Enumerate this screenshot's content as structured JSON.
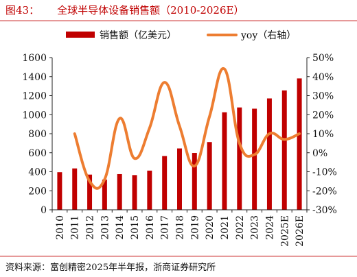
{
  "header": {
    "figure_label": "图43：",
    "title": "全球半导体设备销售额（2010-2026E）"
  },
  "footer": {
    "source": "资料来源：富创精密2025年半年报，浙商证券研究所"
  },
  "chart_data": {
    "type": "bar",
    "categories": [
      "2010",
      "2011",
      "2012",
      "2013",
      "2014",
      "2015",
      "2016",
      "2017",
      "2018",
      "2019",
      "2020",
      "2021",
      "2022",
      "2023",
      "2024",
      "2025E",
      "2026E"
    ],
    "series": [
      {
        "name": "销售额（亿美元）",
        "type": "bar",
        "axis": "left",
        "color": "#c00000",
        "values": [
          395,
          435,
          370,
          318,
          375,
          365,
          412,
          565,
          645,
          598,
          712,
          1025,
          1076,
          1063,
          1171,
          1255,
          1381
        ]
      },
      {
        "name": "yoy（右轴）",
        "type": "line",
        "axis": "right",
        "color": "#ed7d31",
        "values": [
          null,
          10,
          -15,
          -14,
          18,
          -3,
          13,
          37,
          14,
          -7,
          19,
          44,
          5,
          -1,
          10,
          7,
          10
        ]
      }
    ],
    "y_left": {
      "min": 0,
      "max": 1600,
      "step": 200,
      "ticks": [
        "0",
        "200",
        "400",
        "600",
        "800",
        "1000",
        "1200",
        "1400",
        "1600"
      ]
    },
    "y_right": {
      "min": -30,
      "max": 50,
      "step": 10,
      "ticks": [
        "-30%",
        "-20%",
        "-10%",
        "0%",
        "10%",
        "20%",
        "30%",
        "40%",
        "50%"
      ]
    },
    "legend_position": "top",
    "grid": false
  }
}
